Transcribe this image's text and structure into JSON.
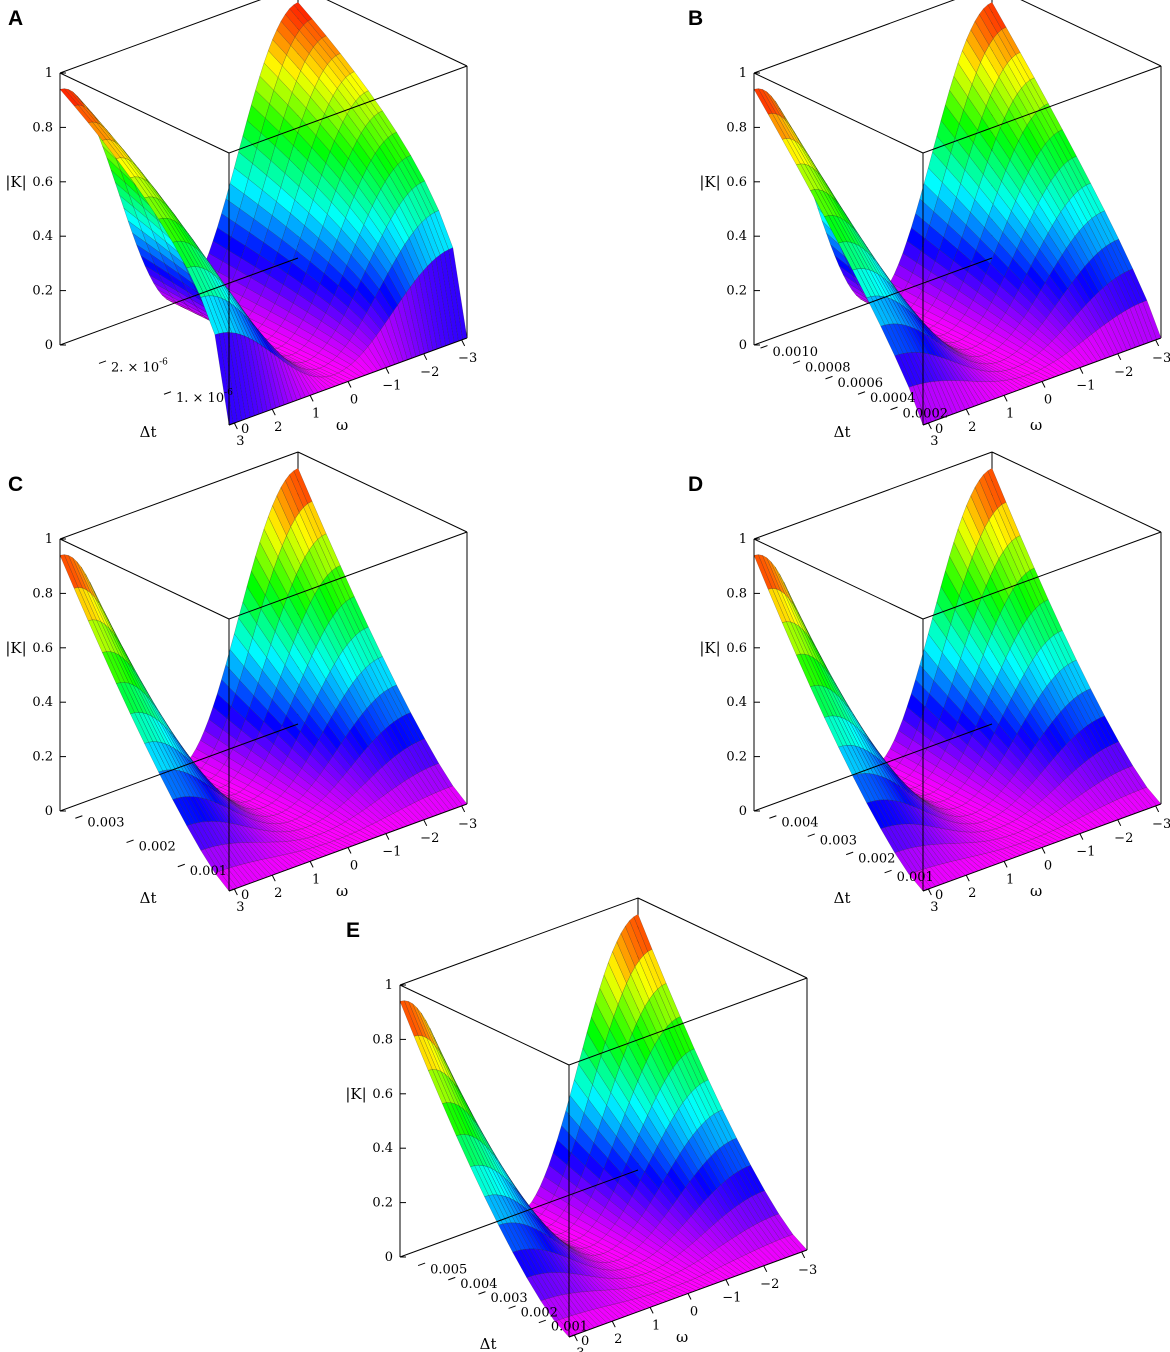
{
  "colormap": [
    "#ff00ff",
    "#0000ff",
    "#00ffff",
    "#00ff00",
    "#ffff00",
    "#ff0000"
  ],
  "chart_data": [
    {
      "panel": "A",
      "type": "surface",
      "title": "",
      "zlabel": "|K|",
      "xlabel": "Δt",
      "ylabel": "ω",
      "zlim": [
        0,
        1
      ],
      "x_range": [
        0,
        2.6e-06
      ],
      "omega_range": [
        -3.14159,
        3.14159
      ],
      "z_ticks": [
        "0",
        "0.2",
        "0.4",
        "0.6",
        "0.8",
        "1"
      ],
      "x_ticks": [
        "0",
        "1. × 10",
        "2. × 10"
      ],
      "x_tick_exponents": [
        "",
        "-6",
        "-6"
      ],
      "x_tick_values": [
        0,
        1e-06,
        2e-06
      ],
      "omega_ticks": [
        "3",
        "2",
        "1",
        "0",
        "−1",
        "−2",
        "−3"
      ],
      "omega_tick_values": [
        3,
        2,
        1,
        0,
        -1,
        -2,
        -3
      ],
      "shape_exponent": 0.45,
      "peak_value": 0.94
    },
    {
      "panel": "B",
      "type": "surface",
      "title": "",
      "zlabel": "|K|",
      "xlabel": "Δt",
      "ylabel": "ω",
      "zlim": [
        0,
        1
      ],
      "x_range": [
        0,
        0.00104
      ],
      "omega_range": [
        -3.14159,
        3.14159
      ],
      "z_ticks": [
        "0",
        "0.2",
        "0.4",
        "0.6",
        "0.8",
        "1"
      ],
      "x_ticks": [
        "0",
        "0.0002",
        "0.0004",
        "0.0006",
        "0.0008",
        "0.0010"
      ],
      "x_tick_exponents": [
        "",
        "",
        "",
        "",
        "",
        ""
      ],
      "x_tick_values": [
        0,
        0.0002,
        0.0004,
        0.0006,
        0.0008,
        0.001
      ],
      "omega_ticks": [
        "3",
        "2",
        "1",
        "0",
        "−1",
        "−2",
        "−3"
      ],
      "omega_tick_values": [
        3,
        2,
        1,
        0,
        -1,
        -2,
        -3
      ],
      "shape_exponent": 0.85,
      "peak_value": 0.94
    },
    {
      "panel": "C",
      "type": "surface",
      "title": "",
      "zlabel": "|K|",
      "xlabel": "Δt",
      "ylabel": "ω",
      "zlim": [
        0,
        1
      ],
      "x_range": [
        0,
        0.0033
      ],
      "omega_range": [
        -3.14159,
        3.14159
      ],
      "z_ticks": [
        "0",
        "0.2",
        "0.4",
        "0.6",
        "0.8",
        "1"
      ],
      "x_ticks": [
        "0",
        "0.001",
        "0.002",
        "0.003"
      ],
      "x_tick_exponents": [
        "",
        "",
        "",
        ""
      ],
      "x_tick_values": [
        0,
        0.001,
        0.002,
        0.003
      ],
      "omega_ticks": [
        "3",
        "2",
        "1",
        "0",
        "−1",
        "−2",
        "−3"
      ],
      "omega_tick_values": [
        3,
        2,
        1,
        0,
        -1,
        -2,
        -3
      ],
      "shape_exponent": 1.25,
      "peak_value": 0.94
    },
    {
      "panel": "D",
      "type": "surface",
      "title": "",
      "zlabel": "|K|",
      "xlabel": "Δt",
      "ylabel": "ω",
      "zlim": [
        0,
        1
      ],
      "x_range": [
        0,
        0.0044
      ],
      "omega_range": [
        -3.14159,
        3.14159
      ],
      "z_ticks": [
        "0",
        "0.2",
        "0.4",
        "0.6",
        "0.8",
        "1"
      ],
      "x_ticks": [
        "0",
        "0.001",
        "0.002",
        "0.003",
        "0.004"
      ],
      "x_tick_exponents": [
        "",
        "",
        "",
        "",
        ""
      ],
      "x_tick_values": [
        0,
        0.001,
        0.002,
        0.003,
        0.004
      ],
      "omega_ticks": [
        "3",
        "2",
        "1",
        "0",
        "−1",
        "−2",
        "−3"
      ],
      "omega_tick_values": [
        3,
        2,
        1,
        0,
        -1,
        -2,
        -3
      ],
      "shape_exponent": 1.3,
      "peak_value": 0.94
    },
    {
      "panel": "E",
      "type": "surface",
      "title": "",
      "zlabel": "|K|",
      "xlabel": "Δt",
      "ylabel": "ω",
      "zlim": [
        0,
        1
      ],
      "x_range": [
        0,
        0.0056
      ],
      "omega_range": [
        -3.14159,
        3.14159
      ],
      "z_ticks": [
        "0",
        "0.2",
        "0.4",
        "0.6",
        "0.8",
        "1"
      ],
      "x_ticks": [
        "0",
        "0.001",
        "0.002",
        "0.003",
        "0.004",
        "0.005"
      ],
      "x_tick_exponents": [
        "",
        "",
        "",
        "",
        "",
        ""
      ],
      "x_tick_values": [
        0,
        0.001,
        0.002,
        0.003,
        0.004,
        0.005
      ],
      "omega_ticks": [
        "3",
        "2",
        "1",
        "0",
        "−1",
        "−2",
        "−3"
      ],
      "omega_tick_values": [
        3,
        2,
        1,
        0,
        -1,
        -2,
        -3
      ],
      "shape_exponent": 1.35,
      "peak_value": 0.94
    }
  ]
}
